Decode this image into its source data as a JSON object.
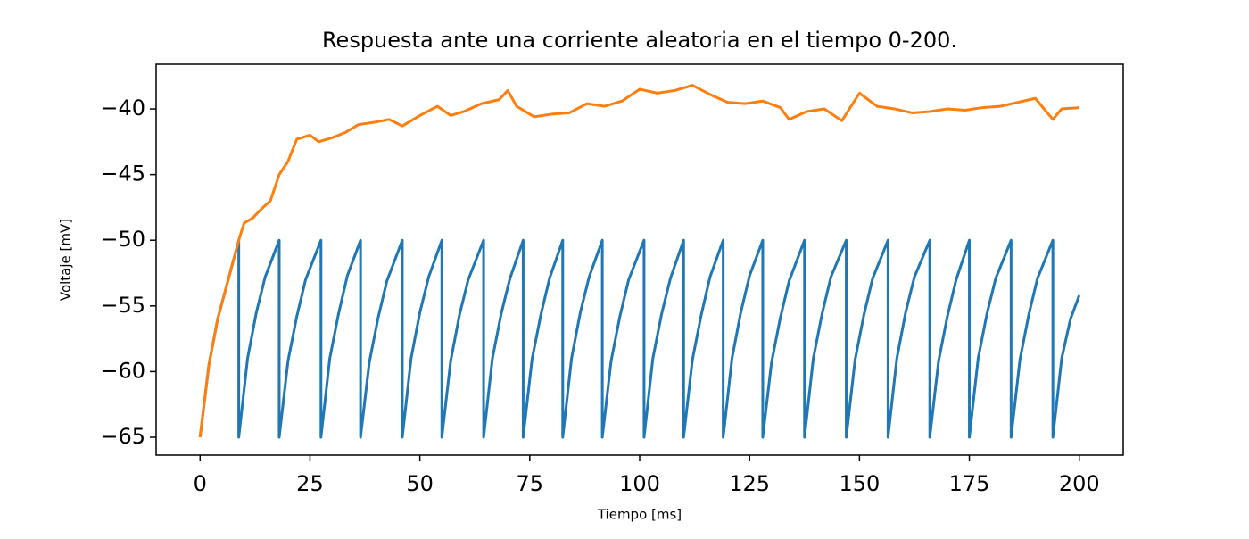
{
  "chart_data": {
    "type": "line",
    "title": "Respuesta ante una corriente aleatoria en el tiempo 0-200.",
    "x_label": "Tiempo [ms]",
    "y_label": "Voltaje [mV]",
    "xlim": [
      -10,
      210
    ],
    "ylim": [
      -66.36,
      -36.6
    ],
    "xticks": [
      0,
      25,
      50,
      75,
      100,
      125,
      150,
      175,
      200
    ],
    "yticks": [
      {
        "value": -65,
        "label": "−65"
      },
      {
        "value": -60,
        "label": "−60"
      },
      {
        "value": -55,
        "label": "−55"
      },
      {
        "value": -50,
        "label": "−50"
      },
      {
        "value": -45,
        "label": "−45"
      },
      {
        "value": -40,
        "label": "−40"
      }
    ],
    "series": [
      {
        "color": "#1f77b4",
        "x": [
          0,
          2,
          4,
          6,
          8.8,
          8.8,
          10.8,
          12.8,
          14.8,
          18,
          18,
          20,
          22,
          24,
          27.5,
          27.5,
          29.5,
          31.5,
          33.5,
          36.5,
          36.5,
          38.5,
          40.5,
          42.5,
          46,
          46,
          48,
          50,
          52,
          55,
          55,
          57,
          59,
          61,
          64.5,
          64.5,
          66.5,
          68.5,
          70.5,
          73.5,
          73.5,
          75.5,
          77.5,
          79.5,
          82.5,
          82.5,
          84.5,
          86.5,
          88.5,
          91.5,
          91.5,
          93.5,
          95.5,
          97.5,
          101,
          101,
          103,
          105,
          107,
          110,
          110,
          112,
          114,
          116,
          119,
          119,
          121,
          123,
          125,
          128,
          128,
          130,
          132,
          134,
          137.5,
          137.5,
          139.5,
          141.5,
          143.5,
          147,
          147,
          149,
          151,
          153,
          156.5,
          156.5,
          158.5,
          160.5,
          162.5,
          166,
          166,
          168,
          170,
          172,
          175,
          175,
          177,
          179,
          181,
          184.5,
          184.5,
          186.5,
          188.5,
          190.5,
          194,
          194,
          196,
          198,
          200
        ],
        "values": [
          -65,
          -59.5,
          -56,
          -53.5,
          -50,
          -65,
          -59,
          -55.5,
          -52.8,
          -50,
          -65,
          -59.2,
          -55.8,
          -53,
          -50,
          -65,
          -59,
          -55.6,
          -52.7,
          -50,
          -65,
          -59.3,
          -55.9,
          -53.1,
          -50,
          -65,
          -59,
          -55.5,
          -52.8,
          -50,
          -65,
          -59.2,
          -55.7,
          -53,
          -50,
          -65,
          -59,
          -55.6,
          -52.9,
          -50,
          -65,
          -59.1,
          -55.7,
          -52.9,
          -50,
          -65,
          -59,
          -55.5,
          -52.8,
          -50,
          -65,
          -59.2,
          -55.8,
          -53,
          -50,
          -65,
          -59,
          -55.6,
          -52.9,
          -50,
          -65,
          -59.1,
          -55.7,
          -52.8,
          -50,
          -65,
          -59,
          -55.5,
          -52.7,
          -50,
          -65,
          -59.3,
          -55.9,
          -53.1,
          -50,
          -65,
          -59,
          -55.6,
          -52.8,
          -50,
          -65,
          -59.1,
          -55.7,
          -52.9,
          -50,
          -65,
          -59,
          -55.5,
          -52.8,
          -50,
          -65,
          -59.2,
          -55.8,
          -53,
          -50,
          -65,
          -59,
          -55.6,
          -52.9,
          -50,
          -65,
          -59.1,
          -55.7,
          -52.9,
          -50,
          -65,
          -59,
          -56,
          -54.2
        ]
      },
      {
        "color": "#ff7f0e",
        "x": [
          0,
          2,
          4,
          6,
          8.8,
          10,
          12,
          14,
          16,
          18,
          20,
          22,
          25,
          27,
          30,
          33,
          36,
          40,
          43,
          46,
          50,
          54,
          57,
          60,
          64,
          68,
          70,
          72,
          76,
          80,
          84,
          88,
          92,
          96,
          100,
          104,
          108,
          112,
          116,
          120,
          124,
          128,
          132,
          134,
          138,
          142,
          146,
          150,
          154,
          158,
          162,
          166,
          170,
          174,
          178,
          182,
          186,
          190,
          194,
          196,
          200
        ],
        "values": [
          -65,
          -59.5,
          -56,
          -53.5,
          -50,
          -48.7,
          -48.3,
          -47.6,
          -47,
          -45,
          -44,
          -42.3,
          -42,
          -42.5,
          -42.2,
          -41.8,
          -41.2,
          -41,
          -40.8,
          -41.3,
          -40.5,
          -39.8,
          -40.5,
          -40.2,
          -39.6,
          -39.3,
          -38.6,
          -39.8,
          -40.6,
          -40.4,
          -40.3,
          -39.6,
          -39.8,
          -39.4,
          -38.5,
          -38.8,
          -38.6,
          -38.2,
          -38.9,
          -39.5,
          -39.6,
          -39.4,
          -39.9,
          -40.8,
          -40.2,
          -40,
          -40.9,
          -38.8,
          -39.8,
          -40,
          -40.3,
          -40.2,
          -40,
          -40.1,
          -39.9,
          -39.8,
          -39.5,
          -39.2,
          -40.8,
          -40,
          -39.9
        ]
      }
    ]
  }
}
